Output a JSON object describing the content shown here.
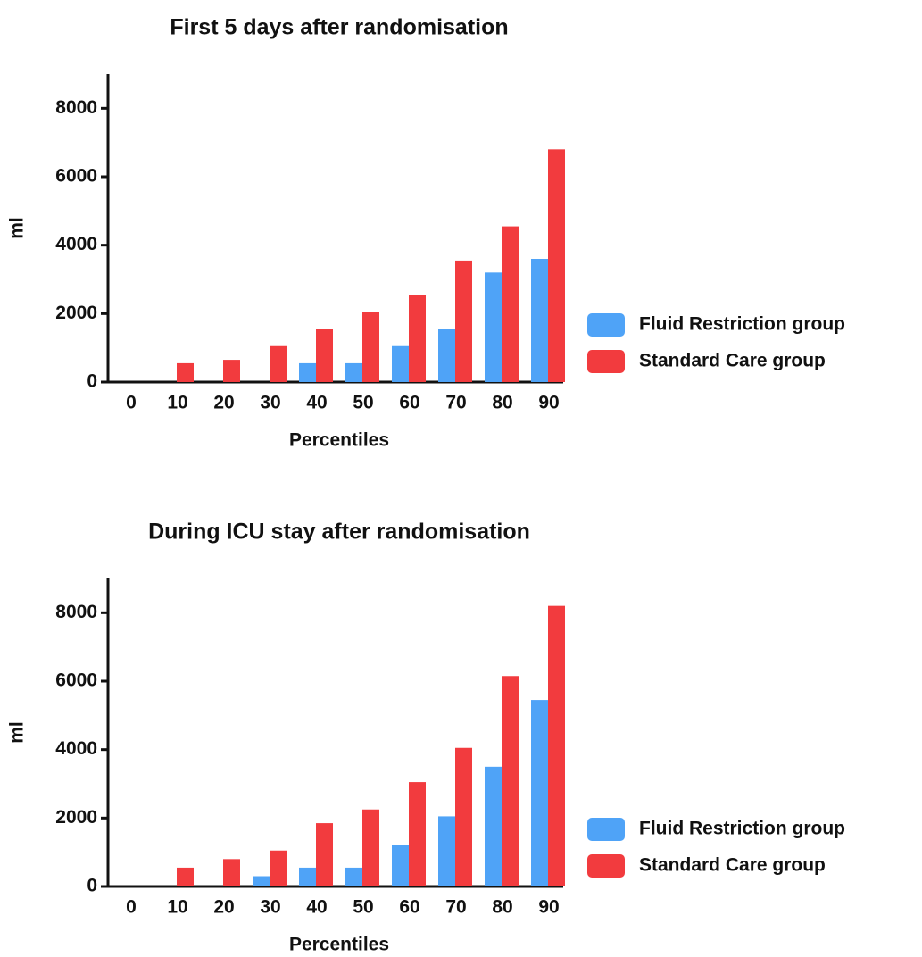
{
  "chart_data": [
    {
      "type": "bar",
      "title": "First 5 days after randomisation",
      "xlabel": "Percentiles",
      "ylabel": "ml",
      "categories": [
        "0",
        "10",
        "20",
        "30",
        "40",
        "50",
        "60",
        "70",
        "80",
        "90"
      ],
      "series": [
        {
          "name": "Fluid Restriction group",
          "color": "#4fa3f7",
          "values": [
            0,
            0,
            0,
            0,
            550,
            550,
            1050,
            1550,
            3200,
            3600
          ]
        },
        {
          "name": "Standard Care group",
          "color": "#f23b3e",
          "values": [
            0,
            550,
            650,
            1050,
            1550,
            2050,
            2550,
            3550,
            4550,
            6800
          ]
        }
      ],
      "ylim": [
        0,
        9000
      ],
      "yticks": [
        0,
        2000,
        4000,
        6000,
        8000
      ],
      "legend": "right"
    },
    {
      "type": "bar",
      "title": "During ICU stay after randomisation",
      "xlabel": "Percentiles",
      "ylabel": "ml",
      "categories": [
        "0",
        "10",
        "20",
        "30",
        "40",
        "50",
        "60",
        "70",
        "80",
        "90"
      ],
      "series": [
        {
          "name": "Fluid Restriction group",
          "color": "#4fa3f7",
          "values": [
            0,
            0,
            0,
            300,
            550,
            550,
            1200,
            2050,
            3500,
            5450
          ]
        },
        {
          "name": "Standard Care group",
          "color": "#f23b3e",
          "values": [
            0,
            550,
            800,
            1050,
            1850,
            2250,
            3050,
            4050,
            6150,
            8200
          ]
        }
      ],
      "ylim": [
        0,
        9000
      ],
      "yticks": [
        0,
        2000,
        4000,
        6000,
        8000
      ],
      "legend": "right"
    }
  ]
}
